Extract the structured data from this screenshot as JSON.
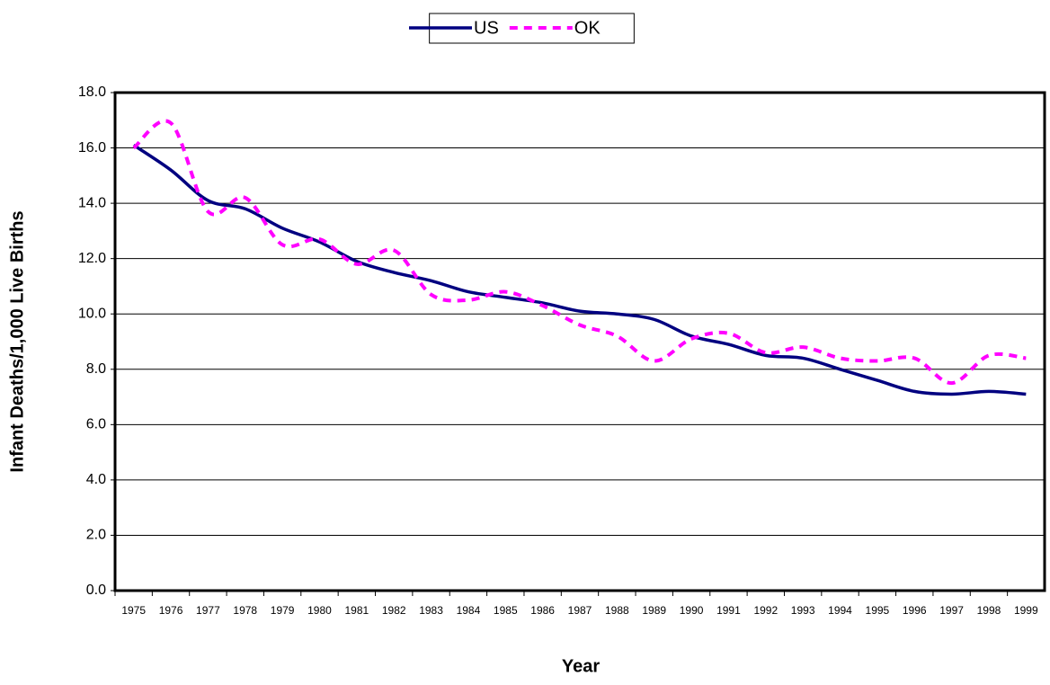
{
  "chart_data": {
    "type": "line",
    "xlabel": "Year",
    "ylabel": "Infant Deaths/1,000 Live Births",
    "categories": [
      "1975",
      "1976",
      "1977",
      "1978",
      "1979",
      "1980",
      "1981",
      "1982",
      "1983",
      "1984",
      "1985",
      "1986",
      "1987",
      "1988",
      "1989",
      "1990",
      "1991",
      "1992",
      "1993",
      "1994",
      "1995",
      "1996",
      "1997",
      "1998",
      "1999"
    ],
    "series": [
      {
        "name": "US",
        "color": "#000080",
        "dashed": false,
        "values": [
          16.1,
          15.2,
          14.1,
          13.8,
          13.1,
          12.6,
          11.9,
          11.5,
          11.2,
          10.8,
          10.6,
          10.4,
          10.1,
          10.0,
          9.8,
          9.2,
          8.9,
          8.5,
          8.4,
          8.0,
          7.6,
          7.2,
          7.1,
          7.2,
          7.1
        ]
      },
      {
        "name": "OK",
        "color": "#ff00ff",
        "dashed": true,
        "values": [
          16.0,
          16.9,
          13.7,
          14.2,
          12.5,
          12.7,
          11.8,
          12.3,
          10.7,
          10.5,
          10.8,
          10.3,
          9.6,
          9.2,
          8.3,
          9.1,
          9.3,
          8.6,
          8.8,
          8.4,
          8.3,
          8.4,
          7.5,
          8.5,
          8.4
        ]
      }
    ],
    "ylim": [
      0,
      18
    ],
    "yticks": [
      {
        "value": 0,
        "label": "0.0"
      },
      {
        "value": 2,
        "label": "2.0"
      },
      {
        "value": 4,
        "label": "4.0"
      },
      {
        "value": 6,
        "label": "6.0"
      },
      {
        "value": 8,
        "label": "8.0"
      },
      {
        "value": 10,
        "label": "10.0"
      },
      {
        "value": 12,
        "label": "12.0"
      },
      {
        "value": 14,
        "label": "14.0"
      },
      {
        "value": 16,
        "label": "16.0"
      },
      {
        "value": 18,
        "label": "18.0"
      }
    ],
    "grid": true,
    "legend": "top"
  }
}
